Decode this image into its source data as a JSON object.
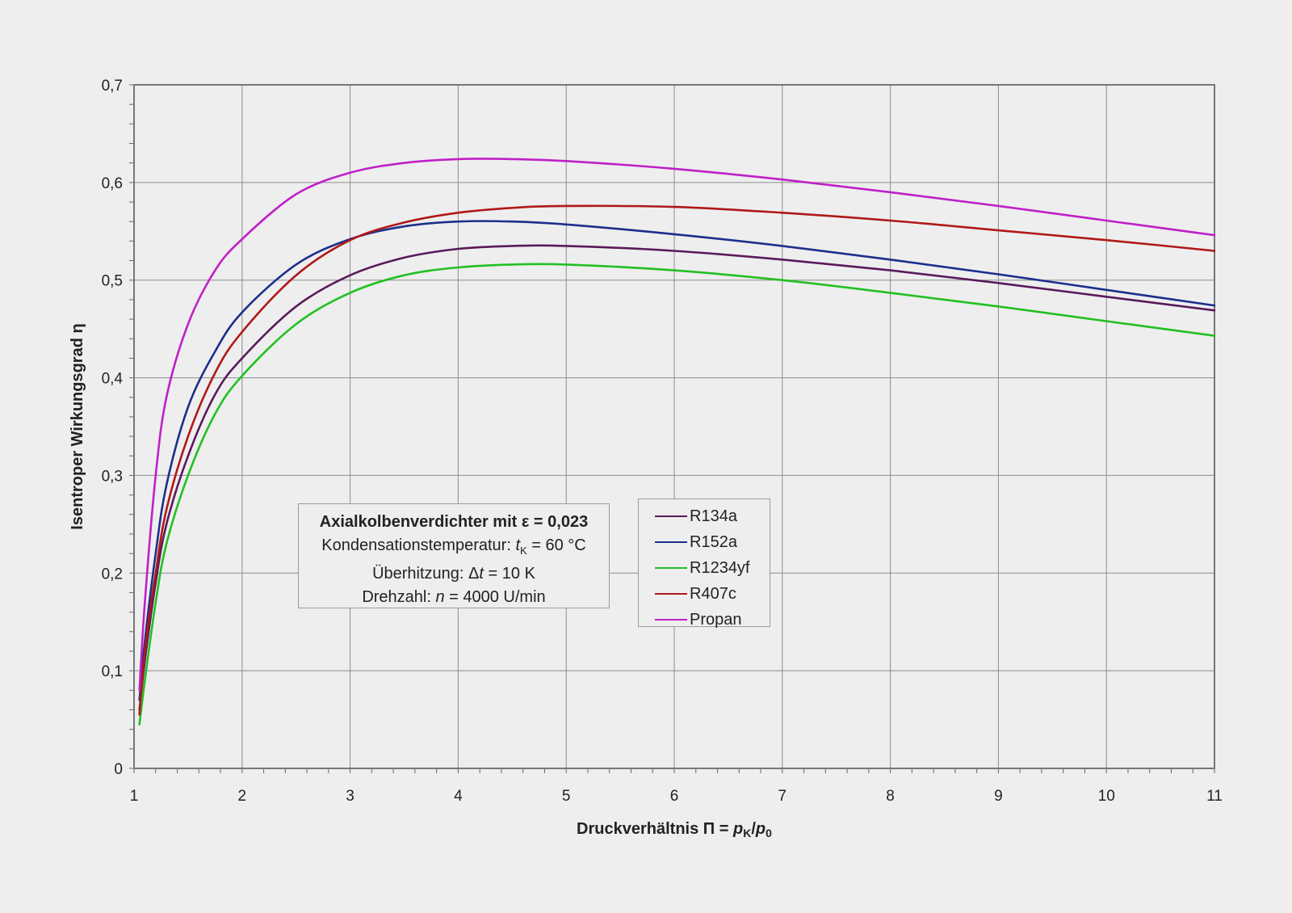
{
  "chart_data": {
    "type": "line",
    "title": "",
    "xlabel": "Druckverhältnis Π = pK/p0",
    "xlabel_parts": {
      "prefix": "Druckverhältnis Π = ",
      "p1": "p",
      "sub1": "K",
      "slash": "/",
      "p2": "p",
      "sub2": "0"
    },
    "ylabel": "Isentroper Wirkungsgrad η",
    "xlim": [
      1,
      11
    ],
    "ylim": [
      0,
      0.7
    ],
    "x_ticks": [
      "1",
      "2",
      "3",
      "4",
      "5",
      "6",
      "7",
      "8",
      "9",
      "10",
      "11"
    ],
    "y_ticks": [
      "0",
      "0,1",
      "0,2",
      "0,3",
      "0,4",
      "0,5",
      "0,6",
      "0,7"
    ],
    "grid": true,
    "legend_position": "center",
    "x": [
      1.05,
      1.1,
      1.2,
      1.3,
      1.5,
      1.75,
      2,
      2.5,
      3,
      3.5,
      4,
      4.5,
      5,
      6,
      7,
      8,
      9,
      10,
      11
    ],
    "series": [
      {
        "name": "R134a",
        "color": "#5a1a5a",
        "values": [
          0.06,
          0.11,
          0.19,
          0.25,
          0.32,
          0.383,
          0.42,
          0.473,
          0.505,
          0.523,
          0.532,
          0.535,
          0.535,
          0.53,
          0.521,
          0.51,
          0.497,
          0.483,
          0.469
        ]
      },
      {
        "name": "R152a",
        "color": "#1c2e8c",
        "values": [
          0.07,
          0.13,
          0.22,
          0.29,
          0.37,
          0.427,
          0.467,
          0.516,
          0.542,
          0.555,
          0.56,
          0.56,
          0.557,
          0.547,
          0.535,
          0.521,
          0.506,
          0.49,
          0.474
        ]
      },
      {
        "name": "R1234yf",
        "color": "#22c022",
        "values": [
          0.045,
          0.09,
          0.17,
          0.23,
          0.3,
          0.363,
          0.402,
          0.455,
          0.487,
          0.505,
          0.513,
          0.516,
          0.516,
          0.51,
          0.5,
          0.487,
          0.473,
          0.458,
          0.443
        ]
      },
      {
        "name": "R407c",
        "color": "#b01818",
        "values": [
          0.055,
          0.12,
          0.2,
          0.265,
          0.34,
          0.405,
          0.447,
          0.505,
          0.541,
          0.559,
          0.569,
          0.574,
          0.576,
          0.575,
          0.569,
          0.561,
          0.551,
          0.541,
          0.53
        ]
      },
      {
        "name": "Propan",
        "color": "#c020c8",
        "values": [
          0.08,
          0.17,
          0.3,
          0.38,
          0.455,
          0.51,
          0.542,
          0.588,
          0.61,
          0.62,
          0.624,
          0.624,
          0.622,
          0.614,
          0.603,
          0.59,
          0.576,
          0.561,
          0.546
        ]
      }
    ],
    "annotation": {
      "line1_prefix": "Axialkolbenverdichter mit ",
      "line1_var": "ε",
      "line1_suffix": " = 0,023",
      "line2_prefix": "Kondensationstemperatur: ",
      "line2_var": "t",
      "line2_sub": "K",
      "line2_suffix": " = 60 °C",
      "line3_prefix": "Überhitzung: Δ",
      "line3_var": "t",
      "line3_suffix": " = 10 K",
      "line4_prefix": "Drehzahl: ",
      "line4_var": "n",
      "line4_suffix": " = 4000 U/min"
    }
  }
}
